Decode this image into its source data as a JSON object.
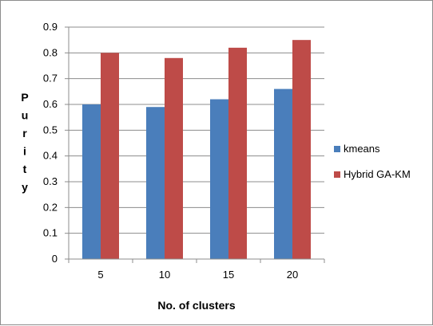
{
  "chart_data": {
    "type": "bar",
    "categories": [
      "5",
      "10",
      "15",
      "20"
    ],
    "series": [
      {
        "name": "kmeans",
        "values": [
          0.6,
          0.59,
          0.62,
          0.66
        ],
        "color": "#4a7ebb"
      },
      {
        "name": "Hybrid GA-KM",
        "values": [
          0.8,
          0.78,
          0.82,
          0.85
        ],
        "color": "#be4b48"
      }
    ],
    "title": "",
    "xlabel": "No. of clusters",
    "ylabel": "Purity",
    "ylim": [
      0,
      0.9
    ],
    "yticks": [
      0,
      0.1,
      0.2,
      0.3,
      0.4,
      0.5,
      0.6,
      0.7,
      0.8,
      0.9
    ],
    "ytick_labels": [
      "0",
      "0.1",
      "0.2",
      "0.3",
      "0.4",
      "0.5",
      "0.6",
      "0.7",
      "0.8",
      "0.9"
    ],
    "grid": true,
    "legend_position": "right"
  }
}
